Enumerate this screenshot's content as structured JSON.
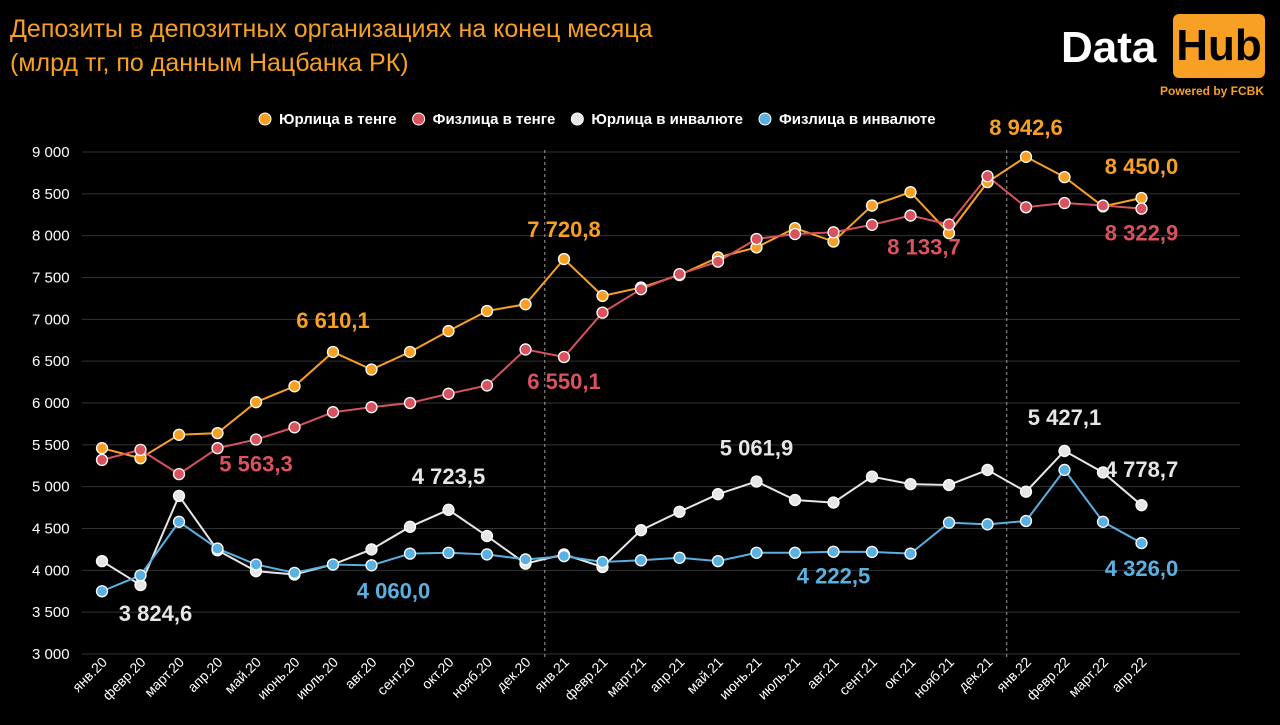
{
  "title_line1": "Депозиты в депозитных организациях на конец месяца",
  "title_line2": "(млрд тг, по данным Нацбанка РК)",
  "logo": {
    "data": "Data",
    "hub": "Hub",
    "powered": "Powered by FCBK"
  },
  "colors": {
    "orange": "#f7a023",
    "red": "#d9535f",
    "white": "#e6e6e6",
    "blue": "#5ab0e0",
    "grid": "#333333"
  },
  "chart_data": {
    "type": "line",
    "title": "Депозиты в депозитных организациях на конец месяца",
    "subtitle": "(млрд тг, по данным Нацбанка РК)",
    "legend_position": "top",
    "grid": true,
    "ylim": [
      3000,
      9000
    ],
    "yticks": [
      3000,
      3500,
      4000,
      4500,
      5000,
      5500,
      6000,
      6500,
      7000,
      7500,
      8000,
      8500,
      9000
    ],
    "ytick_labels": [
      "3 000",
      "3 500",
      "4 000",
      "4 500",
      "5 000",
      "5 500",
      "6 000",
      "6 500",
      "7 000",
      "7 500",
      "8 000",
      "8 500",
      "9 000"
    ],
    "categories": [
      "янв.20",
      "февр.20",
      "март.20",
      "апр.20",
      "май.20",
      "июнь.20",
      "июль.20",
      "авг.20",
      "сент.20",
      "окт.20",
      "нояб.20",
      "дек.20",
      "янв.21",
      "февр.21",
      "март.21",
      "апр.21",
      "май.21",
      "июнь.21",
      "июль.21",
      "авг.21",
      "сент.21",
      "окт.21",
      "нояб.21",
      "дек.21",
      "янв.22",
      "февр.22",
      "март.22",
      "апр.22"
    ],
    "separators_before": [
      "янв.21",
      "янв.22"
    ],
    "series": [
      {
        "name": "Юрлица в тенге",
        "color": "#f7a023",
        "values": [
          5460,
          5340,
          5620,
          5640,
          6010,
          6200,
          6610,
          6400,
          6610,
          6860,
          7100,
          7180,
          7720.8,
          7280,
          7380,
          7530,
          7740,
          7860,
          8090,
          7930,
          8360,
          8520,
          8030,
          8640,
          8942.6,
          8700,
          8350,
          8450.0
        ]
      },
      {
        "name": "Физлица в тенге",
        "color": "#d9535f",
        "values": [
          5320,
          5440,
          5150,
          5460,
          5563.3,
          5710,
          5890,
          5950,
          6000,
          6110,
          6210,
          6640,
          6550.1,
          7080,
          7360,
          7540,
          7690,
          7960,
          8020,
          8040,
          8130,
          8240,
          8133.7,
          8710,
          8340,
          8390,
          8360,
          8322.9
        ]
      },
      {
        "name": "Юрлица в инвалюте",
        "color": "#e6e6e6",
        "values": [
          4110,
          3824.6,
          4890,
          4240,
          3990,
          3950,
          4070,
          4250,
          4520,
          4723.5,
          4410,
          4080,
          4190,
          4040,
          4480,
          4700,
          4910,
          5061.9,
          4840,
          4810,
          5120,
          5030,
          5020,
          5200,
          4940,
          5427.1,
          5170,
          4778.7
        ]
      },
      {
        "name": "Физлица в инвалюте",
        "color": "#5ab0e0",
        "values": [
          3750,
          3940,
          4580,
          4260,
          4070,
          3970,
          4070,
          4060.0,
          4200,
          4210,
          4190,
          4130,
          4170,
          4100,
          4120,
          4150,
          4110,
          4210,
          4210,
          4222.5,
          4220,
          4200,
          4570,
          4550,
          4590,
          5200,
          4580,
          4326.0
        ]
      }
    ],
    "annotations": [
      {
        "series": 0,
        "index": 6,
        "text": "6 610,1",
        "dy": -24
      },
      {
        "series": 0,
        "index": 12,
        "text": "7 720,8",
        "dy": -22
      },
      {
        "series": 0,
        "index": 24,
        "text": "8 942,6",
        "dy": -22
      },
      {
        "series": 0,
        "index": 27,
        "text": "8 450,0",
        "dy": -24
      },
      {
        "series": 1,
        "index": 4,
        "text": "5 563,3",
        "dy": 32
      },
      {
        "series": 1,
        "index": 12,
        "text": "6 550,1",
        "dy": 32
      },
      {
        "series": 1,
        "index": 22,
        "text": "8 133,7",
        "dy": 30,
        "dx": -25
      },
      {
        "series": 1,
        "index": 27,
        "text": "8 322,9",
        "dy": 32
      },
      {
        "series": 2,
        "index": 1,
        "text": "3 824,6",
        "dy": 36,
        "dx": 15
      },
      {
        "series": 2,
        "index": 9,
        "text": "4 723,5",
        "dy": -26
      },
      {
        "series": 2,
        "index": 17,
        "text": "5 061,9",
        "dy": -26
      },
      {
        "series": 2,
        "index": 25,
        "text": "5 427,1",
        "dy": -26
      },
      {
        "series": 2,
        "index": 27,
        "text": "4 778,7",
        "dy": -28
      },
      {
        "series": 3,
        "index": 7,
        "text": "4 060,0",
        "dy": 33,
        "dx": 22
      },
      {
        "series": 3,
        "index": 19,
        "text": "4 222,5",
        "dy": 32
      },
      {
        "series": 3,
        "index": 27,
        "text": "4 326,0",
        "dy": 33
      }
    ]
  }
}
